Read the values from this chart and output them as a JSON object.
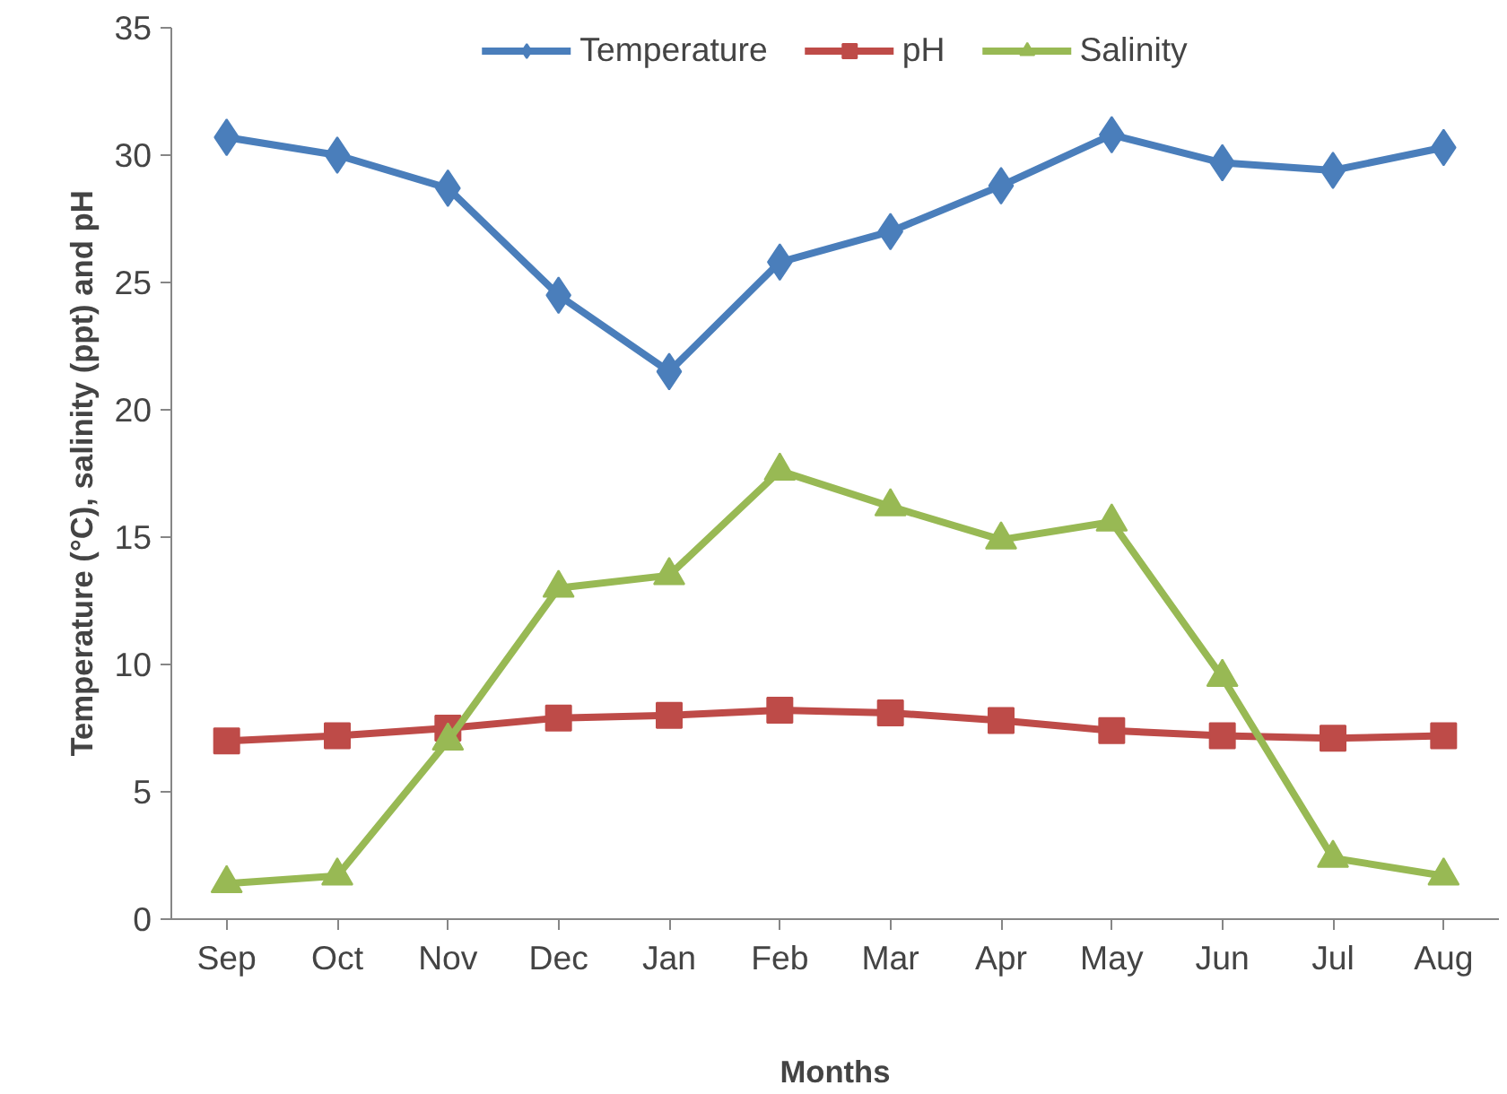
{
  "chart_data": {
    "type": "line",
    "xlabel": "Months",
    "ylabel": "Temperature (°C), salinity (ppt) and pH",
    "categories": [
      "Sep",
      "Oct",
      "Nov",
      "Dec",
      "Jan",
      "Feb",
      "Mar",
      "Apr",
      "May",
      "Jun",
      "Jul",
      "Aug"
    ],
    "series": [
      {
        "name": "Temperature",
        "color": "#4a7ebb",
        "marker": "diamond",
        "values": [
          30.7,
          30.0,
          28.7,
          24.5,
          21.5,
          25.8,
          27.0,
          28.8,
          30.8,
          29.7,
          29.4,
          30.3
        ]
      },
      {
        "name": "pH",
        "color": "#be4b48",
        "marker": "square",
        "values": [
          7.0,
          7.2,
          7.5,
          7.9,
          8.0,
          8.2,
          8.1,
          7.8,
          7.4,
          7.2,
          7.1,
          7.2
        ]
      },
      {
        "name": "Salinity",
        "color": "#98b954",
        "marker": "triangle",
        "values": [
          1.4,
          1.7,
          7.0,
          13.0,
          13.5,
          17.6,
          16.2,
          14.9,
          15.6,
          9.5,
          2.4,
          1.7
        ]
      }
    ],
    "ylim": [
      0,
      35
    ],
    "yticks": [
      0,
      5,
      10,
      15,
      20,
      25,
      30,
      35
    ],
    "grid": false,
    "legend": "top",
    "line_style": "solid"
  }
}
